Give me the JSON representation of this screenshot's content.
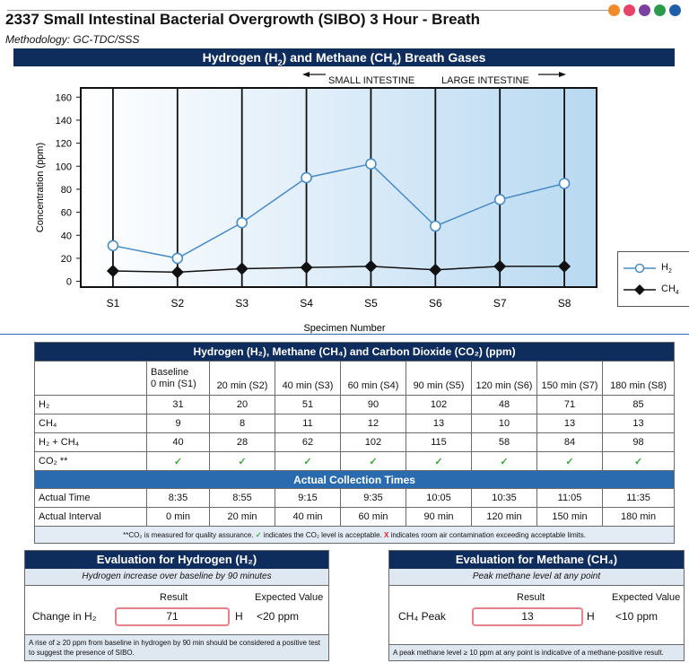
{
  "header": {
    "title": "2337 Small Intestinal Bacterial Overgrowth (SIBO) 3 Hour - Breath",
    "methodology": "Methodology: GC-TDC/SSS",
    "dot_colors": [
      "#f08a2a",
      "#e8426a",
      "#7b3fa0",
      "#2b9a4a",
      "#1e5fa8"
    ]
  },
  "chart_banner": {
    "prefix": "Hydrogen (H",
    "sub1": "2",
    "mid": ") and Methane (CH",
    "sub2": "4",
    "suffix": ") Breath Gases"
  },
  "region_labels": {
    "small": "SMALL INTESTINE",
    "large": "LARGE INTESTINE"
  },
  "chart_data": {
    "type": "line",
    "title": "Hydrogen (H2) and Methane (CH4) Breath Gases",
    "xlabel": "Specimen Number",
    "ylabel": "Concentration (ppm)",
    "categories": [
      "S1",
      "S2",
      "S3",
      "S4",
      "S5",
      "S6",
      "S7",
      "S8"
    ],
    "ylim": [
      -5,
      168
    ],
    "yticks": [
      0,
      20,
      40,
      60,
      80,
      100,
      120,
      140,
      160
    ],
    "series": [
      {
        "name": "H2",
        "values": [
          31,
          20,
          51,
          90,
          102,
          48,
          71,
          85
        ],
        "color": "#4a8cc4",
        "marker": "circle"
      },
      {
        "name": "CH4",
        "values": [
          9,
          8,
          11,
          12,
          13,
          10,
          13,
          13
        ],
        "color": "#111111",
        "marker": "diamond"
      }
    ],
    "legend": [
      "H2",
      "CH4"
    ],
    "legend_position": "right"
  },
  "legend_labels": {
    "h2_prefix": "H",
    "h2_sub": "2",
    "ch4_prefix": "CH",
    "ch4_sub": "4"
  },
  "table": {
    "title": "Hydrogen (H₂), Methane (CH₄) and Carbon Dioxide (CO₂) (ppm)",
    "columns": [
      {
        "line1": "Baseline",
        "line2": "0 min (S1)"
      },
      {
        "line1": "",
        "line2": "20 min (S2)"
      },
      {
        "line1": "",
        "line2": "40 min (S3)"
      },
      {
        "line1": "",
        "line2": "60 min (S4)"
      },
      {
        "line1": "",
        "line2": "90 min (S5)"
      },
      {
        "line1": "",
        "line2": "120 min (S6)"
      },
      {
        "line1": "",
        "line2": "150 min (S7)"
      },
      {
        "line1": "",
        "line2": "180 min (S8)"
      }
    ],
    "rows": [
      {
        "label": "H₂",
        "values": [
          "31",
          "20",
          "51",
          "90",
          "102",
          "48",
          "71",
          "85"
        ]
      },
      {
        "label": "CH₄",
        "values": [
          "9",
          "8",
          "11",
          "12",
          "13",
          "10",
          "13",
          "13"
        ]
      },
      {
        "label": "H₂ + CH₄",
        "values": [
          "40",
          "28",
          "62",
          "102",
          "115",
          "58",
          "84",
          "98"
        ]
      },
      {
        "label": "CO₂ **",
        "values": [
          "✓",
          "✓",
          "✓",
          "✓",
          "✓",
          "✓",
          "✓",
          "✓"
        ]
      }
    ],
    "collection_title": "Actual Collection Times",
    "time_label": "Actual Time",
    "times": [
      "8:35",
      "8:55",
      "9:15",
      "9:35",
      "10:05",
      "10:35",
      "11:05",
      "11:35"
    ],
    "interval_label": "Actual Interval",
    "intervals": [
      "0 min",
      "20 min",
      "40 min",
      "60 min",
      "90 min",
      "120 min",
      "150 min",
      "180 min"
    ],
    "note_a": "**CO₂ is measured for quality assurance.",
    "note_check": "✓",
    "note_b": "indicates the CO₂ level is acceptable.",
    "note_cross": "X",
    "note_c": "indicates room air contamination exceeding acceptable limits."
  },
  "eval_h2": {
    "title": "Evaluation for Hydrogen (H₂)",
    "subtitle": "Hydrogen increase over baseline by 90 minutes",
    "result_header": "Result",
    "expected_header": "Expected Value",
    "row_label": "Change in H₂",
    "result": "71",
    "flag": "H",
    "expected": "<20 ppm",
    "footnote": "A rise of ≥ 20 ppm from baseline in hydrogen by 90 min should be considered a positive test to suggest the presence of SIBO."
  },
  "eval_ch4": {
    "title": "Evaluation for Methane (CH₄)",
    "subtitle": "Peak methane level at any point",
    "result_header": "Result",
    "expected_header": "Expected Value",
    "row_label": "CH₄ Peak",
    "result": "13",
    "flag": "H",
    "expected": "<10 ppm",
    "footnote": "A peak methane level ≥ 10 ppm at any point is indicative of a methane-positive result."
  }
}
